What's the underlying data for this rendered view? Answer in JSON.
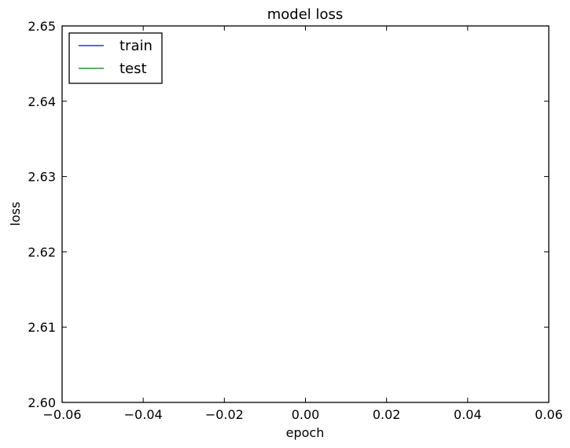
{
  "chart_data": {
    "type": "line",
    "title": "model loss",
    "xlabel": "epoch",
    "ylabel": "loss",
    "xlim": [
      -0.06,
      0.06
    ],
    "ylim": [
      2.6,
      2.65
    ],
    "xticks": [
      "-0.06",
      "-0.04",
      "-0.02",
      "0.00",
      "0.02",
      "0.04",
      "0.06"
    ],
    "yticks": [
      "2.60",
      "2.61",
      "2.62",
      "2.63",
      "2.64",
      "2.65"
    ],
    "series": [
      {
        "name": "train",
        "color": "#0000ff",
        "x": [],
        "y": []
      },
      {
        "name": "test",
        "color": "#008000",
        "x": [],
        "y": []
      }
    ],
    "legend_position": "top-left",
    "grid": false
  }
}
